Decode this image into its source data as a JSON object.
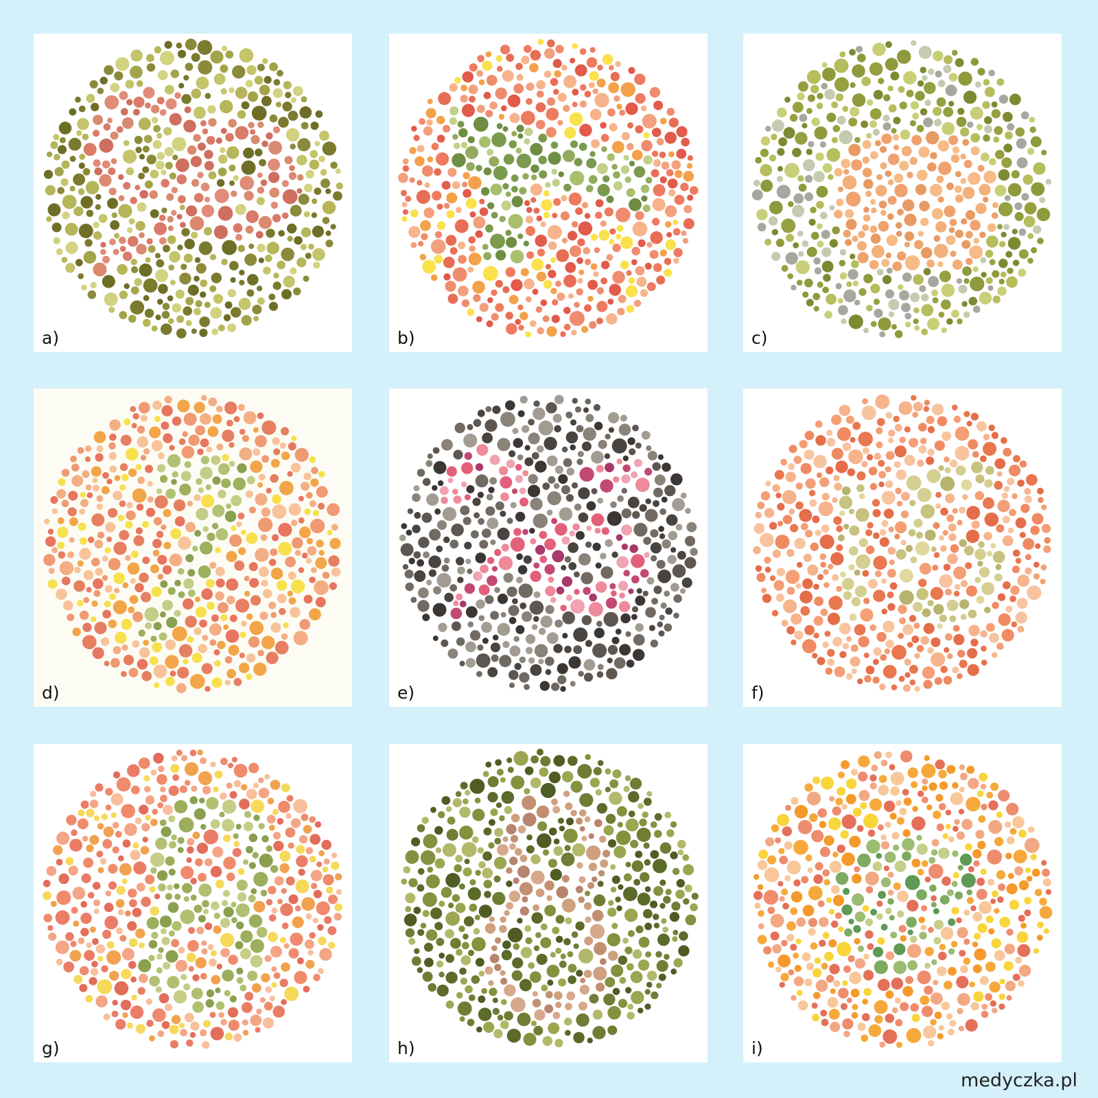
{
  "plates": [
    {
      "label": "a)",
      "palette": {
        "bg": [
          "#6f6e26",
          "#7b7a2e",
          "#8a8a3a",
          "#a3a44a",
          "#c4c46a",
          "#d2d280",
          "#b6b55a"
        ],
        "fg": [
          "#d97b68",
          "#e08c78",
          "#cf6f60",
          "#d98a70"
        ]
      }
    },
    {
      "label": "b)",
      "palette": {
        "bg": [
          "#e86d55",
          "#ef8c6d",
          "#f2a07e",
          "#f7b48c",
          "#fbe14b",
          "#f3a24a",
          "#e25a4a",
          "#ee7a5f"
        ],
        "fg": [
          "#7a9a4e",
          "#93ab5c",
          "#a8bf6e",
          "#c2d08a",
          "#6f8e44"
        ]
      }
    },
    {
      "label": "c)",
      "palette": {
        "bg": [
          "#7e8a32",
          "#97a040",
          "#b6bd5c",
          "#c9cf78",
          "#a6a8a0",
          "#c5cbb0",
          "#8f9a3c"
        ],
        "fg": [
          "#f0a26e",
          "#f3b07a",
          "#e89a63",
          "#f6bb86"
        ]
      }
    },
    {
      "label": "d)",
      "palette": {
        "bg": [
          "#ef9a72",
          "#f4ae86",
          "#e67f62",
          "#f8c39a",
          "#f7e04c",
          "#f2a649",
          "#e8755f"
        ],
        "fg": [
          "#9db05e",
          "#b2c275",
          "#8aa052",
          "#c3cd87"
        ]
      }
    },
    {
      "label": "e)",
      "palette": {
        "bg": [
          "#4a4440",
          "#5e5751",
          "#716a62",
          "#8a837a",
          "#a29c93",
          "#3c3734"
        ],
        "fg": [
          "#e3607a",
          "#ee8a99",
          "#c24a72",
          "#a83a6a",
          "#f0a3b0"
        ]
      }
    },
    {
      "label": "f)",
      "palette": {
        "bg": [
          "#ef8a62",
          "#f49f76",
          "#f6b38c",
          "#e9774f",
          "#f8c4a0",
          "#e56d4a"
        ],
        "fg": [
          "#c7c27e",
          "#d4cf90",
          "#b8b36e",
          "#e0d89c"
        ]
      }
    },
    {
      "label": "g)",
      "palette": {
        "bg": [
          "#ef8b6c",
          "#f4a586",
          "#f8bf9a",
          "#e36d5b",
          "#f6d95a",
          "#f1a24e",
          "#eb7c66"
        ],
        "fg": [
          "#9cae5c",
          "#b1c070",
          "#c6cd87",
          "#8aa04f"
        ]
      }
    },
    {
      "label": "h)",
      "palette": {
        "bg": [
          "#5c6a2a",
          "#6f7d35",
          "#84913f",
          "#9ca550",
          "#b3b96a",
          "#4f5d24"
        ],
        "fg": [
          "#c29070",
          "#cfa080",
          "#b88470",
          "#d6a98c"
        ]
      }
    },
    {
      "label": "i)",
      "palette": {
        "bg": [
          "#e5705a",
          "#ee8c6d",
          "#f3a884",
          "#f8c79a",
          "#f9d53c",
          "#f6a93a",
          "#f59a2a"
        ],
        "fg": [
          "#5e9a55",
          "#7daa60",
          "#9cbb73",
          "#c6cf8a"
        ]
      }
    }
  ],
  "watermark": "medyczka.pl"
}
